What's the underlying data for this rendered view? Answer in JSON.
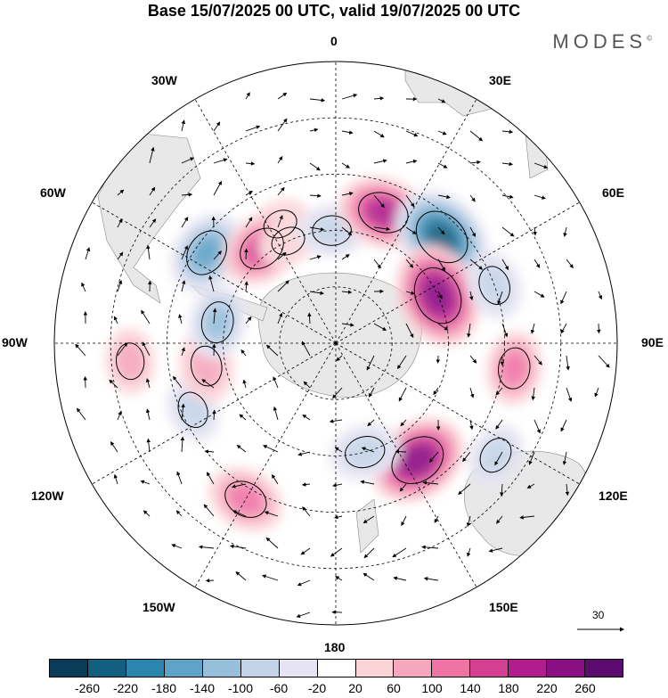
{
  "title": "Base 15/07/2025 00 UTC, valid 19/07/2025 00 UTC",
  "brand": "MODES",
  "brand_mark": "©",
  "longitude_labels": {
    "lon0": "0",
    "lon30e": "30E",
    "lon60e": "60E",
    "lon90e": "90E",
    "lon120e": "120E",
    "lon150e": "150E",
    "lon180": "180",
    "lon150w": "150W",
    "lon120w": "120W",
    "lon90w": "90W",
    "lon60w": "60W",
    "lon30w": "30W"
  },
  "vector_scale_label": "30",
  "colorbar": {
    "colors": [
      "#0b3c57",
      "#12607f",
      "#2a86ad",
      "#5ea3c8",
      "#97bedb",
      "#c4d4e8",
      "#e6e4f2",
      "#ffffff",
      "#fbd4d8",
      "#f6a6bd",
      "#ef74a6",
      "#d43f94",
      "#b11d8d",
      "#8a0f84",
      "#5c0b6f"
    ],
    "ticks": [
      "-260",
      "-220",
      "-180",
      "-140",
      "-100",
      "-60",
      "-20",
      "20",
      "60",
      "100",
      "140",
      "180",
      "220",
      "260"
    ]
  },
  "anomalies": [
    {
      "lon": -55,
      "lat": -48,
      "value": -150
    },
    {
      "lon": -25,
      "lat": -55,
      "value": 40
    },
    {
      "lon": -38,
      "lat": -58,
      "value": 150
    },
    {
      "lon": -25,
      "lat": -60,
      "value": 40
    },
    {
      "lon": -2,
      "lat": -60,
      "value": -80
    },
    {
      "lon": 20,
      "lat": -53,
      "value": 180
    },
    {
      "lon": 45,
      "lat": -50,
      "value": -240
    },
    {
      "lon": 65,
      "lat": -60,
      "value": 240
    },
    {
      "lon": 70,
      "lat": -45,
      "value": -80
    },
    {
      "lon": 98,
      "lat": -42,
      "value": 100
    },
    {
      "lon": 145,
      "lat": -52,
      "value": 220
    },
    {
      "lon": 165,
      "lat": -60,
      "value": -90
    },
    {
      "lon": -150,
      "lat": -42,
      "value": 120
    },
    {
      "lon": -115,
      "lat": -48,
      "value": -60
    },
    {
      "lon": -100,
      "lat": -55,
      "value": 90
    },
    {
      "lon": -80,
      "lat": -58,
      "value": -100
    },
    {
      "lon": -95,
      "lat": -35,
      "value": 60
    },
    {
      "lon": 125,
      "lat": -38,
      "value": -60
    }
  ]
}
